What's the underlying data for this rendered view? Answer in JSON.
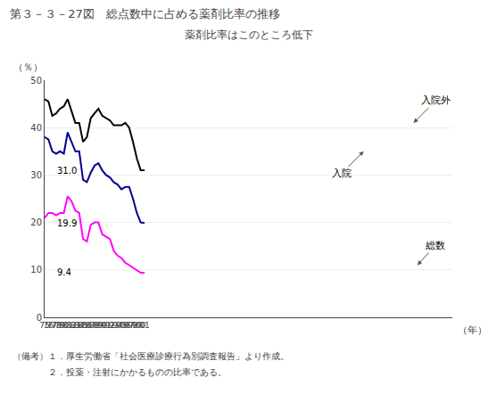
{
  "chart_data": {
    "type": "line",
    "title": "第３－３－27図　総点数中に占める薬剤比率の推移",
    "subtitle": "薬剤比率はこのところ低下",
    "ylabel": "（％）",
    "xlabel": "（年）",
    "notes": [
      "（備考）１．厚生労働省「社会医療診療行為別調査報告」より作成。",
      "　　　　２．投薬・注射にかかるものの比率である。"
    ],
    "categories": [
      "75",
      "76",
      "77",
      "78",
      "79",
      "80",
      "81",
      "82",
      "83",
      "84",
      "85",
      "86",
      "87",
      "88",
      "89",
      "90",
      "91",
      "92",
      "93",
      "94",
      "95",
      "96",
      "97",
      "98",
      "99",
      "00",
      "01"
    ],
    "series": [
      {
        "name": "入院外",
        "color": "#000000",
        "values": [
          46.0,
          45.5,
          42.5,
          43.0,
          44.0,
          44.5,
          46.0,
          43.5,
          41.0,
          41.0,
          37.0,
          38.0,
          42.0,
          43.0,
          44.0,
          42.5,
          42.0,
          41.5,
          40.5,
          40.5,
          40.5,
          41.0,
          40.0,
          37.0,
          33.5,
          31.0,
          31.0
        ],
        "value_labels": [
          null,
          null,
          null,
          null,
          null,
          null,
          null,
          null,
          null,
          null,
          null,
          null,
          null,
          null,
          null,
          null,
          null,
          null,
          null,
          null,
          null,
          null,
          null,
          null,
          null,
          null,
          "31.0"
        ]
      },
      {
        "name": "入院",
        "color": "#00008B",
        "values": [
          38.0,
          37.5,
          35.0,
          34.5,
          35.0,
          34.5,
          39.0,
          37.0,
          35.0,
          35.0,
          29.0,
          28.5,
          30.5,
          32.0,
          32.5,
          31.0,
          30.0,
          29.5,
          28.5,
          28.0,
          27.0,
          27.5,
          27.5,
          25.0,
          22.0,
          20.0,
          19.9
        ],
        "value_labels": [
          null,
          null,
          null,
          null,
          null,
          null,
          null,
          null,
          null,
          null,
          null,
          null,
          null,
          null,
          null,
          null,
          null,
          null,
          null,
          null,
          null,
          null,
          null,
          null,
          null,
          null,
          "19.9"
        ]
      },
      {
        "name": "総数",
        "color": "#FF00FF",
        "values": [
          21.0,
          22.0,
          22.0,
          21.5,
          22.0,
          22.0,
          25.5,
          24.5,
          22.5,
          22.0,
          16.5,
          16.0,
          19.5,
          20.0,
          20.0,
          17.5,
          17.0,
          16.5,
          14.0,
          13.0,
          12.5,
          11.5,
          11.0,
          10.5,
          10.0,
          9.4,
          9.4
        ],
        "value_labels": [
          null,
          null,
          null,
          null,
          null,
          null,
          null,
          null,
          null,
          null,
          null,
          null,
          null,
          null,
          null,
          null,
          null,
          null,
          null,
          null,
          null,
          null,
          null,
          null,
          null,
          null,
          "9.4"
        ]
      }
    ],
    "annotations": [
      {
        "text": "入院外",
        "series": "入院外",
        "x": "96"
      },
      {
        "text": "入院",
        "series": "入院",
        "x": "83"
      },
      {
        "text": "総数",
        "series": "総数",
        "x": "97"
      }
    ],
    "ylim": [
      0,
      50
    ],
    "yticks": [
      0,
      10,
      20,
      30,
      40,
      50
    ],
    "grid": true
  }
}
